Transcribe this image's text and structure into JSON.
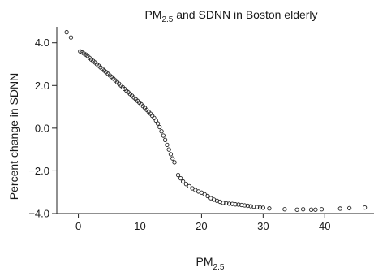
{
  "chart_data": {
    "type": "scatter",
    "title": {
      "main": "PM",
      "sub": "2.5",
      "rest": " and SDNN in Boston elderly"
    },
    "xlabel": {
      "main": "PM",
      "sub": "2.5"
    },
    "ylabel": "Percent change in SDNN",
    "xlim": [
      -3.5,
      48
    ],
    "ylim": [
      -4.0,
      4.75
    ],
    "xticks": [
      0,
      10,
      20,
      30,
      40
    ],
    "xtick_labels": [
      "0",
      "10",
      "20",
      "30",
      "40"
    ],
    "yticks": [
      4.0,
      2.0,
      0.0,
      -2.0,
      -4.0
    ],
    "ytick_labels": [
      "4.0",
      "2.0",
      "0.0",
      "−2.0",
      "−4.0"
    ],
    "grid": false,
    "points": [
      [
        -1.9,
        4.5
      ],
      [
        -1.2,
        4.25
      ],
      [
        0.3,
        3.6
      ],
      [
        0.6,
        3.55
      ],
      [
        0.9,
        3.5
      ],
      [
        1.2,
        3.45
      ],
      [
        1.5,
        3.38
      ],
      [
        1.8,
        3.3
      ],
      [
        2.1,
        3.22
      ],
      [
        2.4,
        3.15
      ],
      [
        2.7,
        3.08
      ],
      [
        3.0,
        3.0
      ],
      [
        3.3,
        2.93
      ],
      [
        3.6,
        2.85
      ],
      [
        3.9,
        2.78
      ],
      [
        4.2,
        2.7
      ],
      [
        4.5,
        2.63
      ],
      [
        4.8,
        2.55
      ],
      [
        5.1,
        2.47
      ],
      [
        5.4,
        2.4
      ],
      [
        5.7,
        2.32
      ],
      [
        6.0,
        2.24
      ],
      [
        6.3,
        2.16
      ],
      [
        6.6,
        2.08
      ],
      [
        6.9,
        2.0
      ],
      [
        7.2,
        1.92
      ],
      [
        7.5,
        1.84
      ],
      [
        7.8,
        1.76
      ],
      [
        8.1,
        1.68
      ],
      [
        8.4,
        1.6
      ],
      [
        8.7,
        1.52
      ],
      [
        9.0,
        1.44
      ],
      [
        9.3,
        1.36
      ],
      [
        9.6,
        1.28
      ],
      [
        9.9,
        1.2
      ],
      [
        10.2,
        1.12
      ],
      [
        10.5,
        1.03
      ],
      [
        10.8,
        0.95
      ],
      [
        11.1,
        0.86
      ],
      [
        11.4,
        0.77
      ],
      [
        11.7,
        0.68
      ],
      [
        12.0,
        0.58
      ],
      [
        12.3,
        0.48
      ],
      [
        12.6,
        0.36
      ],
      [
        12.9,
        0.22
      ],
      [
        13.2,
        0.05
      ],
      [
        13.5,
        -0.15
      ],
      [
        13.8,
        -0.35
      ],
      [
        14.1,
        -0.55
      ],
      [
        14.4,
        -0.78
      ],
      [
        14.7,
        -1.0
      ],
      [
        15.0,
        -1.22
      ],
      [
        15.3,
        -1.42
      ],
      [
        15.6,
        -1.6
      ],
      [
        16.2,
        -2.2
      ],
      [
        16.6,
        -2.35
      ],
      [
        17.0,
        -2.5
      ],
      [
        17.5,
        -2.62
      ],
      [
        18.0,
        -2.72
      ],
      [
        18.5,
        -2.82
      ],
      [
        19.0,
        -2.9
      ],
      [
        19.5,
        -2.97
      ],
      [
        20.0,
        -3.02
      ],
      [
        20.5,
        -3.1
      ],
      [
        21.0,
        -3.18
      ],
      [
        21.5,
        -3.28
      ],
      [
        22.0,
        -3.35
      ],
      [
        22.5,
        -3.4
      ],
      [
        23.0,
        -3.45
      ],
      [
        23.5,
        -3.5
      ],
      [
        24.0,
        -3.52
      ],
      [
        24.5,
        -3.54
      ],
      [
        25.0,
        -3.55
      ],
      [
        25.5,
        -3.57
      ],
      [
        26.0,
        -3.58
      ],
      [
        26.5,
        -3.6
      ],
      [
        27.0,
        -3.62
      ],
      [
        27.5,
        -3.64
      ],
      [
        28.0,
        -3.66
      ],
      [
        28.5,
        -3.68
      ],
      [
        29.0,
        -3.7
      ],
      [
        29.5,
        -3.72
      ],
      [
        30.0,
        -3.73
      ],
      [
        31.0,
        -3.76
      ],
      [
        33.5,
        -3.8
      ],
      [
        35.5,
        -3.82
      ],
      [
        36.5,
        -3.8
      ],
      [
        37.8,
        -3.82
      ],
      [
        38.5,
        -3.82
      ],
      [
        39.5,
        -3.8
      ],
      [
        42.5,
        -3.77
      ],
      [
        44.0,
        -3.75
      ],
      [
        46.5,
        -3.72
      ]
    ]
  }
}
